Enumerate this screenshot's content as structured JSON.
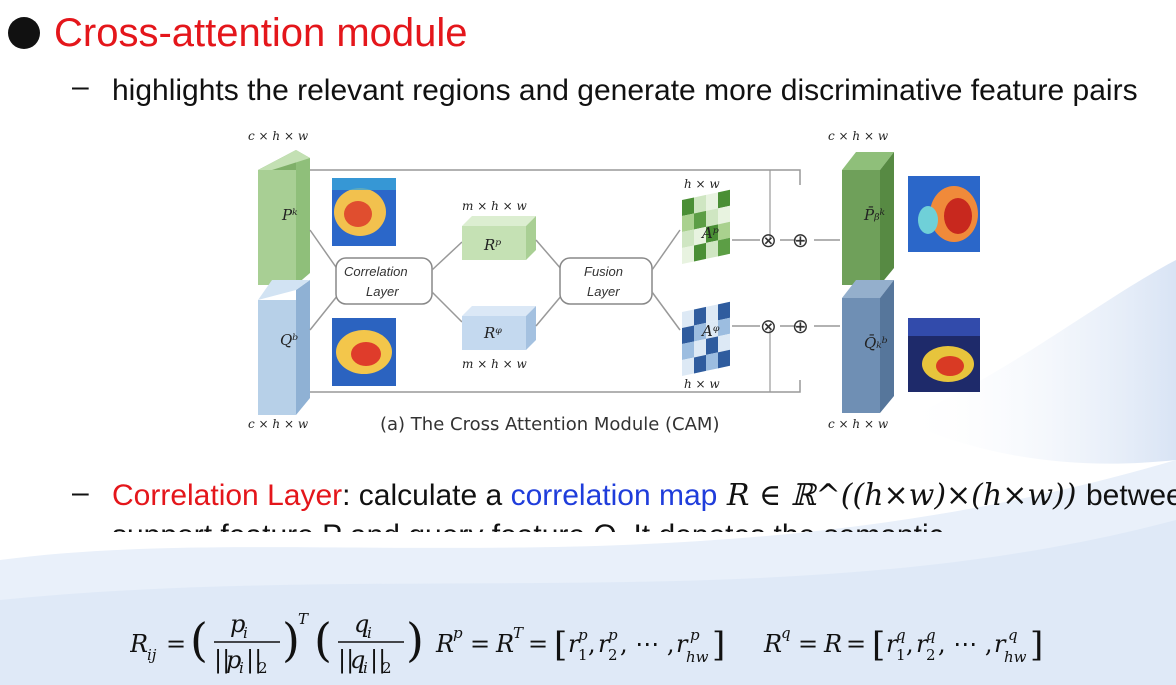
{
  "title": "Cross-attention module",
  "bullet1": {
    "dash": "–",
    "text": "highlights the relevant regions and generate more discriminative feature pairs"
  },
  "figure": {
    "caption": "(a) The Cross Attention Module (CAM)",
    "top_left_dim": "c × h × w",
    "bottom_left_dim": "c × h × w",
    "top_right_dim": "c × h × w",
    "bottom_right_dim": "c × h × w",
    "rp_dim": "m × h × w",
    "rq_dim": "m × h × w",
    "ap_dim": "h × w",
    "aq_dim": "h × w",
    "pk_label": "Pᵏ",
    "qb_label": "Qᵇ",
    "rp_label": "Rᵖ",
    "rq_label": "Rᵠ",
    "ap_label": "Aᵖ",
    "aq_label": "Aᵠ",
    "pbk_label": "P̄ᵦᵏ",
    "qkb_label": "Q̄ₖᵇ",
    "correlation_line1": "Correlation",
    "correlation_line2": "Layer",
    "fusion_line1": "Fusion",
    "fusion_line2": "Layer",
    "multiply_symbol": "⊗",
    "add_symbol": "⊕"
  },
  "bullet2": {
    "dash": "–",
    "label": "Correlation Layer",
    "colon": ": calculate a ",
    "map_text": "correlation map",
    "math": " R ∈ ℝ^((h×w)×(h×w)) ",
    "rest": "between",
    "line2": "support feature P and query feature Q. It denotes the semantic"
  },
  "formula": {
    "text": "R_ij = (p_i / ||p_i||_2)^T (q_i / ||q_i||_2)    R^p = R^T = [r_1^p, r_2^p, ⋯, r_hw^p]    R^q = R = [r_1^q, r_2^q, ⋯, r_hw^q]"
  },
  "colors": {
    "title_red": "#e4161b",
    "link_blue": "#1f3ddb",
    "green_feature": "#a8cf94",
    "blue_feature": "#b7d0e8"
  }
}
